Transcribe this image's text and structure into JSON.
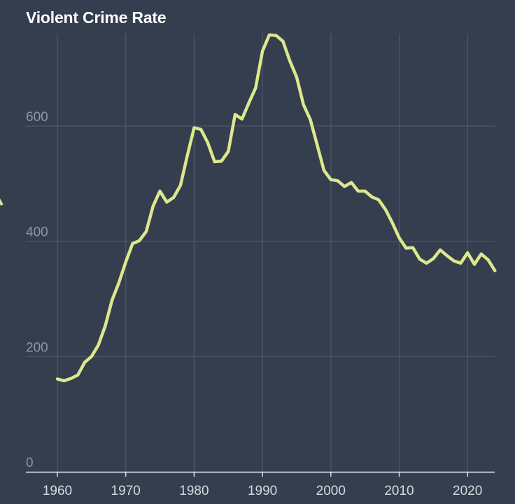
{
  "chart_data": {
    "type": "line",
    "title": "Violent Crime Rate",
    "xlabel": "",
    "ylabel": "",
    "xlim": [
      1955,
      2024
    ],
    "ylim": [
      0,
      760
    ],
    "x_ticks": [
      1960,
      1970,
      1980,
      1990,
      2000,
      2010,
      2020
    ],
    "y_ticks": [
      0,
      200,
      400,
      600
    ],
    "grid": true,
    "line_color": "#dbe88c",
    "background_color": "#343e4e",
    "grid_color": "#4e5868",
    "series": [
      {
        "x": [
          1960,
          1961,
          1962,
          1963,
          1964,
          1965,
          1966,
          1967,
          1968,
          1969,
          1970,
          1971,
          1972,
          1973,
          1974,
          1975,
          1976,
          1977,
          1978,
          1979,
          1980,
          1981,
          1982,
          1983,
          1984,
          1985,
          1986,
          1987,
          1988,
          1989,
          1990,
          1991,
          1992,
          1993,
          1994,
          1995,
          1996,
          1997,
          1998,
          1999,
          2000,
          2001,
          2002,
          2003,
          2004,
          2005,
          2006,
          2007,
          2008,
          2009,
          2010,
          2011,
          2012,
          2013,
          2014,
          2015,
          2016,
          2017,
          2018,
          2019,
          2020,
          2021,
          2022,
          2023,
          2024
        ],
        "values": [
          161,
          158,
          162,
          168,
          190,
          200,
          220,
          253,
          298,
          328,
          364,
          396,
          401,
          417,
          461,
          487,
          468,
          476,
          497,
          548,
          597,
          594,
          571,
          538,
          539,
          556,
          620,
          612,
          640,
          666,
          730,
          758,
          757,
          747,
          713,
          685,
          637,
          611,
          567,
          523,
          507,
          505,
          495,
          502,
          487,
          487,
          477,
          472,
          455,
          432,
          406,
          388,
          389,
          369,
          362,
          370,
          385,
          375,
          366,
          362,
          380,
          360,
          378,
          368,
          349
        ]
      }
    ]
  }
}
